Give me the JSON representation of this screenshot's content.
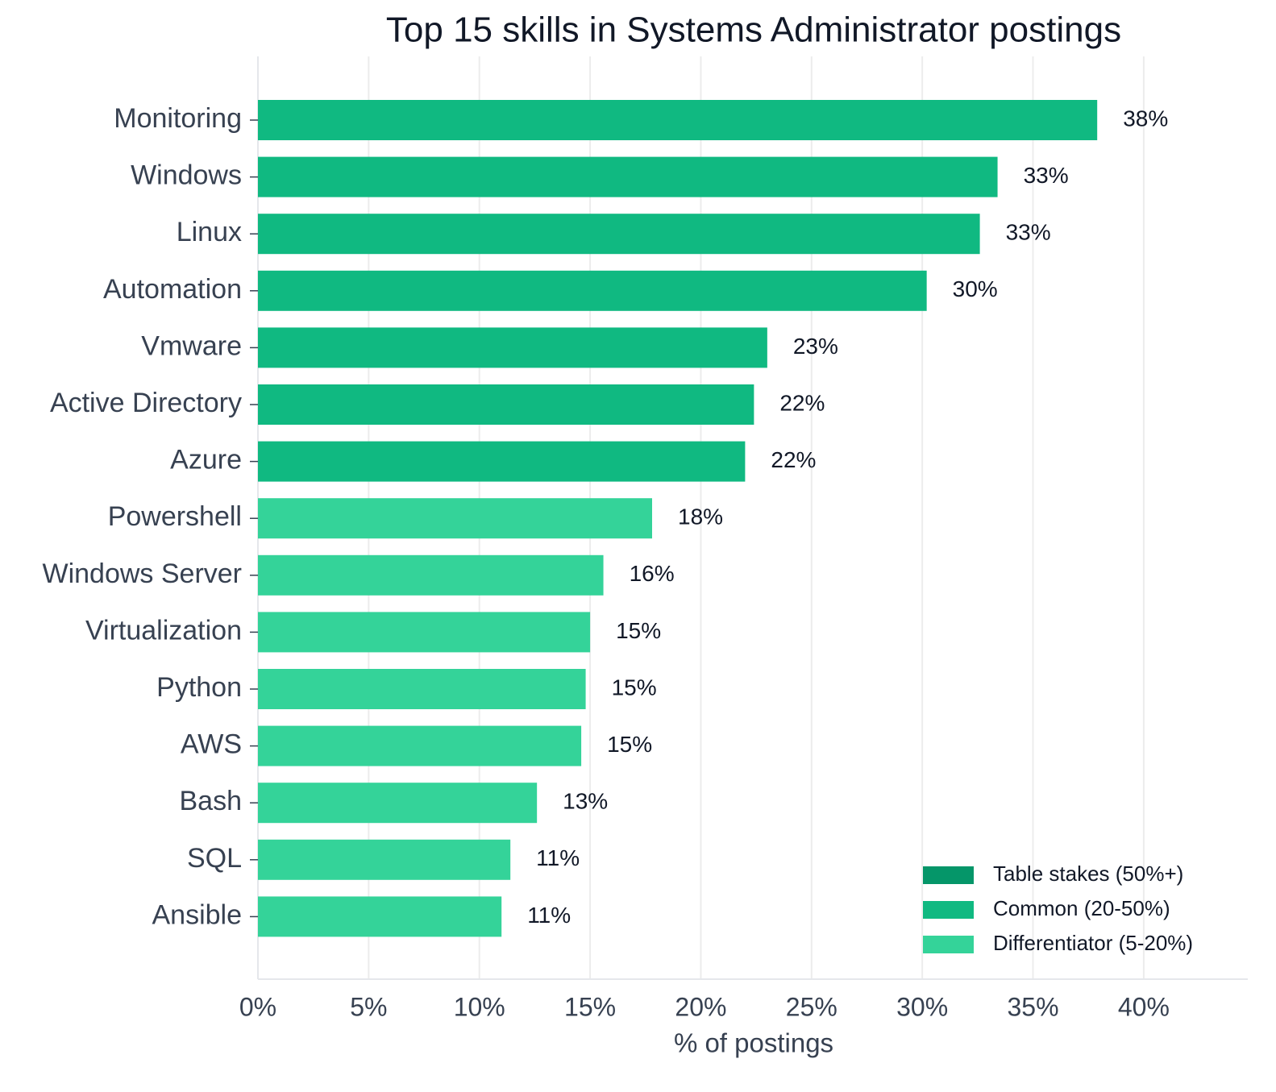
{
  "chart_data": {
    "type": "barh",
    "title": "Top 15 skills in Systems Administrator postings",
    "xlabel": "% of postings",
    "categories": [
      "Monitoring",
      "Windows",
      "Linux",
      "Automation",
      "Vmware",
      "Active Directory",
      "Azure",
      "Powershell",
      "Windows Server",
      "Virtualization",
      "Python",
      "AWS",
      "Bash",
      "SQL",
      "Ansible"
    ],
    "values": [
      37.9,
      33.4,
      32.6,
      30.2,
      23.0,
      22.4,
      22.0,
      17.8,
      15.6,
      15.0,
      14.8,
      14.6,
      12.6,
      11.4,
      11.0
    ],
    "value_labels": [
      "38%",
      "33%",
      "33%",
      "30%",
      "23%",
      "22%",
      "22%",
      "18%",
      "16%",
      "15%",
      "15%",
      "15%",
      "13%",
      "11%",
      "11%"
    ],
    "colors": [
      "#10b981",
      "#10b981",
      "#10b981",
      "#10b981",
      "#10b981",
      "#10b981",
      "#10b981",
      "#34d399",
      "#34d399",
      "#34d399",
      "#34d399",
      "#34d399",
      "#34d399",
      "#34d399",
      "#34d399"
    ],
    "legend": [
      {
        "name": "Table stakes (50%+)",
        "color": "#059669"
      },
      {
        "name": "Common (20-50%)",
        "color": "#10b981"
      },
      {
        "name": "Differentiator (5-20%)",
        "color": "#34d399"
      }
    ],
    "legend_position": "lower right",
    "xlim": [
      0,
      44.7
    ],
    "xticks": [
      {
        "value": 0,
        "label": "0%"
      },
      {
        "value": 5,
        "label": "5%"
      },
      {
        "value": 10,
        "label": "10%"
      },
      {
        "value": 15,
        "label": "15%"
      },
      {
        "value": 20,
        "label": "20%"
      },
      {
        "value": 25,
        "label": "25%"
      },
      {
        "value": 30,
        "label": "30%"
      },
      {
        "value": 35,
        "label": "35%"
      },
      {
        "value": 40,
        "label": "40%"
      }
    ],
    "grid": true
  }
}
